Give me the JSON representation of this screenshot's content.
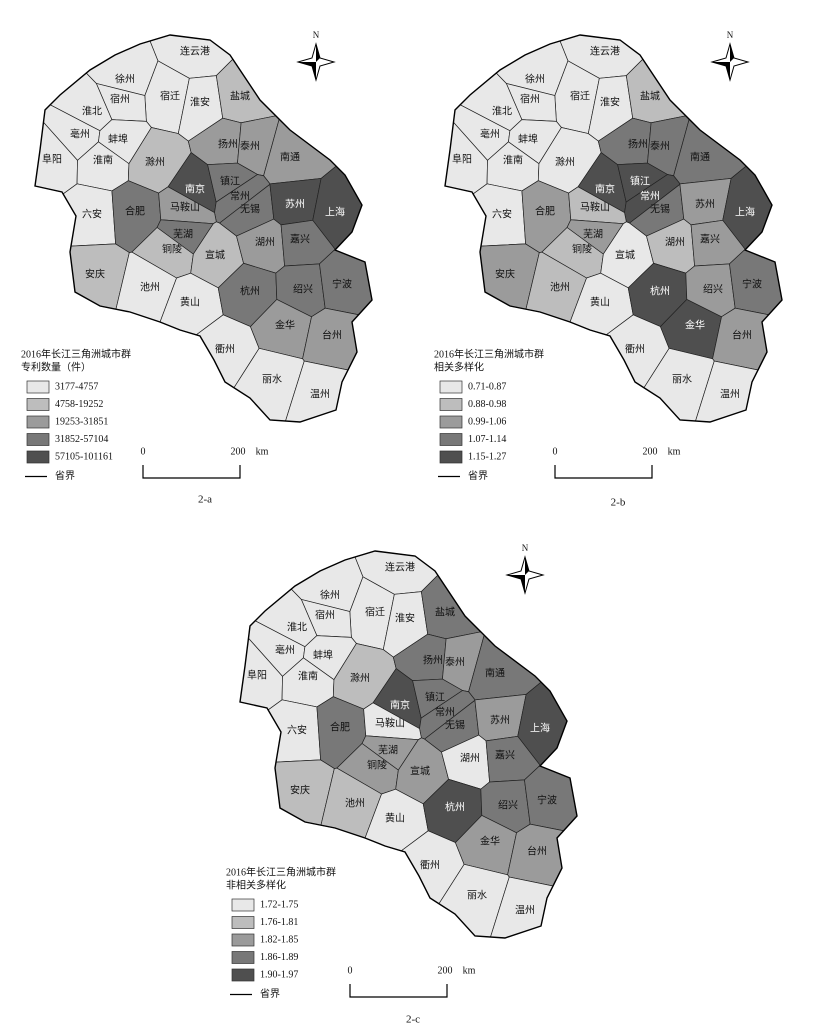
{
  "cities": [
    "连云港",
    "徐州",
    "宿迁",
    "宿州",
    "淮北",
    "淮安",
    "盐城",
    "亳州",
    "蚌埠",
    "阜阳",
    "淮南",
    "滁州",
    "扬州",
    "泰州",
    "南通",
    "六安",
    "合肥",
    "南京",
    "镇江",
    "常州",
    "马鞍山",
    "无锡",
    "苏州",
    "上海",
    "芜湖",
    "铜陵",
    "宣城",
    "湖州",
    "嘉兴",
    "安庆",
    "池州",
    "黄山",
    "杭州",
    "绍兴",
    "宁波",
    "衢州",
    "金华",
    "台州",
    "丽水",
    "温州"
  ],
  "north": "N",
  "scale": {
    "start": "0",
    "end": "200",
    "unit": "km"
  },
  "colors": [
    "#e8e8e8",
    "#bdbdbd",
    "#9b9b9b",
    "#787878",
    "#4f4f4f"
  ],
  "maps": [
    {
      "caption": "2-a",
      "legend": {
        "title": [
          "2016年长江三角洲城市群",
          "专利数量（件）"
        ],
        "items": [
          "3177-4757",
          "4758-19252",
          "19253-31851",
          "31852-57104",
          "57105-101161"
        ],
        "boundary_label": "省界"
      },
      "classes": [
        0,
        0,
        0,
        0,
        0,
        0,
        1,
        0,
        0,
        0,
        0,
        1,
        2,
        2,
        2,
        0,
        3,
        4,
        3,
        3,
        2,
        3,
        4,
        4,
        3,
        1,
        1,
        2,
        3,
        1,
        0,
        0,
        3,
        3,
        3,
        0,
        2,
        2,
        0,
        0
      ]
    },
    {
      "caption": "2-b",
      "legend": {
        "title": [
          "2016年长江三角洲城市群",
          "相关多样化"
        ],
        "items": [
          "0.71-0.87",
          "0.88-0.98",
          "0.99-1.06",
          "1.07-1.14",
          "1.15-1.27"
        ],
        "boundary_label": "省界"
      },
      "classes": [
        0,
        0,
        0,
        0,
        0,
        0,
        1,
        0,
        0,
        0,
        0,
        0,
        3,
        3,
        3,
        0,
        2,
        4,
        4,
        4,
        1,
        3,
        2,
        4,
        2,
        1,
        0,
        1,
        2,
        2,
        1,
        0,
        4,
        2,
        3,
        0,
        4,
        2,
        0,
        0
      ]
    },
    {
      "caption": "2-c",
      "legend": {
        "title": [
          "2016年长江三角洲城市群",
          "非相关多样化"
        ],
        "items": [
          "1.72-1.75",
          "1.76-1.81",
          "1.82-1.85",
          "1.86-1.89",
          "1.90-1.97"
        ],
        "boundary_label": "省界"
      },
      "classes": [
        0,
        0,
        0,
        0,
        0,
        0,
        3,
        0,
        0,
        0,
        0,
        1,
        3,
        2,
        3,
        0,
        3,
        4,
        3,
        3,
        0,
        3,
        2,
        4,
        2,
        2,
        2,
        0,
        3,
        1,
        1,
        0,
        4,
        3,
        3,
        0,
        2,
        2,
        0,
        0
      ]
    }
  ]
}
